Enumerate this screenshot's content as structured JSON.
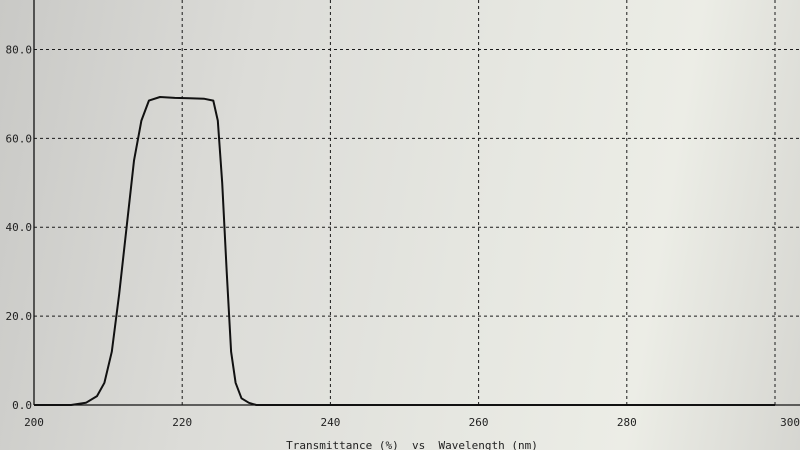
{
  "chart_data": {
    "type": "line",
    "title": "",
    "xlabel": "Transmittance (%)  vs  Wavelength (nm)",
    "ylabel": "",
    "xlim": [
      200,
      300
    ],
    "ylim": [
      0,
      90
    ],
    "x_ticks": [
      200,
      220,
      240,
      260,
      280,
      300
    ],
    "x_tick_labels": [
      "200",
      "220",
      "240",
      "260",
      "280",
      "300"
    ],
    "y_ticks": [
      0,
      20,
      40,
      60,
      80
    ],
    "y_tick_labels": [
      "0.0",
      "20.0",
      "40.0",
      "60.0",
      "80.0"
    ],
    "grid": true,
    "series": [
      {
        "x": [
          200,
          205,
          207,
          208.5,
          209.5,
          210.5,
          211.5,
          212.5,
          213.5,
          214.5,
          215.5,
          217,
          219,
          221,
          223,
          224.2,
          224.8,
          225.4,
          226,
          226.6,
          227.2,
          228,
          229,
          230,
          235,
          260,
          300
        ],
        "y": [
          0,
          0,
          0.5,
          2,
          5,
          12,
          25,
          40,
          55,
          64,
          68.5,
          69.3,
          69.1,
          69,
          68.9,
          68.5,
          64,
          50,
          30,
          12,
          5,
          1.5,
          0.5,
          0,
          0,
          0,
          0
        ]
      }
    ]
  }
}
